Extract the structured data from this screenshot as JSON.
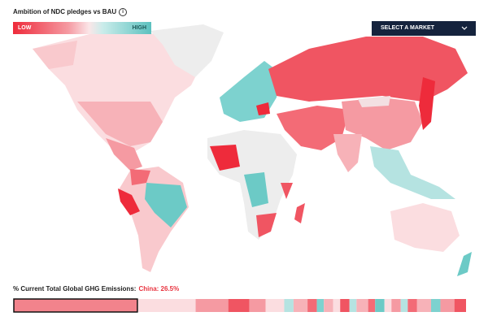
{
  "header": {
    "title": "Ambition of NDC pledges vs BAU"
  },
  "legend": {
    "low": "LOW",
    "high": "HIGH"
  },
  "select": {
    "label": "SELECT A MARKET"
  },
  "emissions": {
    "label": "% Current Total Global GHG Emissions:",
    "highlight": "China: 26.5%"
  },
  "strip": {
    "values": [
      26.5,
      12.5,
      7,
      4.5,
      3.5,
      4,
      2,
      3,
      2,
      1.5,
      2,
      1.5,
      2,
      1.5,
      2.5,
      1.5,
      2,
      1.5,
      2,
      1.5,
      2,
      3,
      2,
      3,
      2.5
    ],
    "colors": [
      "#f2838c",
      "#fbdde0",
      "#f59aa2",
      "#f05562",
      "#f59aa2",
      "#fbdde0",
      "#b5e3e1",
      "#f7b2b8",
      "#f36b76",
      "#7dd2cf",
      "#f7b2b8",
      "#fbdde0",
      "#f05562",
      "#b5e3e1",
      "#f7b2b8",
      "#f36b76",
      "#6ccac6",
      "#fbdde0",
      "#f59aa2",
      "#b5e3e1",
      "#f36b76",
      "#f7b2b8",
      "#7dd2cf",
      "#f59aa2",
      "#f05562"
    ]
  }
}
